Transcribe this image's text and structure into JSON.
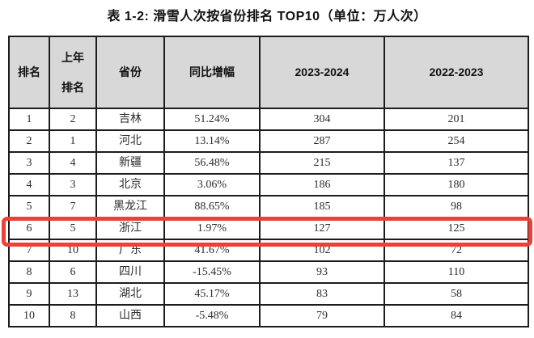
{
  "page": {
    "title": "表 1-2: 滑雪人次按省份排名 TOP10（单位：万人次）"
  },
  "chart_data": {
    "type": "table",
    "title": "表 1-2: 滑雪人次按省份排名 TOP10（单位：万人次）",
    "unit": "万人次",
    "columns": [
      "排名",
      "上年\n排名",
      "省份",
      "同比增幅",
      "2023-2024",
      "2022-2023"
    ],
    "rows": [
      [
        "1",
        "2",
        "吉林",
        "51.24%",
        "304",
        "201"
      ],
      [
        "2",
        "1",
        "河北",
        "13.14%",
        "287",
        "254"
      ],
      [
        "3",
        "4",
        "新疆",
        "56.48%",
        "215",
        "137"
      ],
      [
        "4",
        "3",
        "北京",
        "3.06%",
        "186",
        "180"
      ],
      [
        "5",
        "7",
        "黑龙江",
        "88.65%",
        "185",
        "98"
      ],
      [
        "6",
        "5",
        "浙江",
        "1.97%",
        "127",
        "125"
      ],
      [
        "7",
        "10",
        "广东",
        "41.67%",
        "102",
        "72"
      ],
      [
        "8",
        "6",
        "四川",
        "-15.45%",
        "93",
        "110"
      ],
      [
        "9",
        "13",
        "湖北",
        "45.17%",
        "83",
        "58"
      ],
      [
        "10",
        "8",
        "山西",
        "-5.48%",
        "79",
        "84"
      ]
    ],
    "highlight": {
      "row_index": 5,
      "rank": "6",
      "province": "浙江",
      "annotation": "red-box",
      "color": "#ee4036"
    },
    "layout": {
      "header_bg": "#d8d8d8",
      "border_color": "#1c1c1c",
      "grid": "on"
    }
  }
}
